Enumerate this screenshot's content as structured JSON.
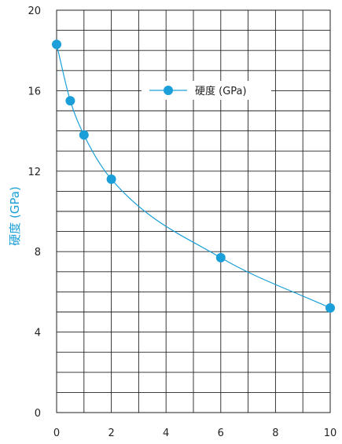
{
  "chart_data": {
    "type": "line",
    "title": "",
    "xlabel": "",
    "ylabel": "硬度 (GPa)",
    "xlim": [
      0,
      10
    ],
    "ylim": [
      0,
      20
    ],
    "x_ticks": [
      "0",
      "2",
      "4",
      "6",
      "8",
      "10"
    ],
    "y_ticks": [
      "0",
      "4",
      "8",
      "12",
      "16",
      "20"
    ],
    "grid": true,
    "legend_position": "top-right",
    "series": [
      {
        "name": "硬度 (GPa)",
        "color": "#1a9fd8",
        "x": [
          0,
          0.5,
          1,
          2,
          6,
          10
        ],
        "y": [
          18.3,
          15.5,
          13.8,
          11.6,
          7.7,
          5.2
        ]
      }
    ]
  }
}
